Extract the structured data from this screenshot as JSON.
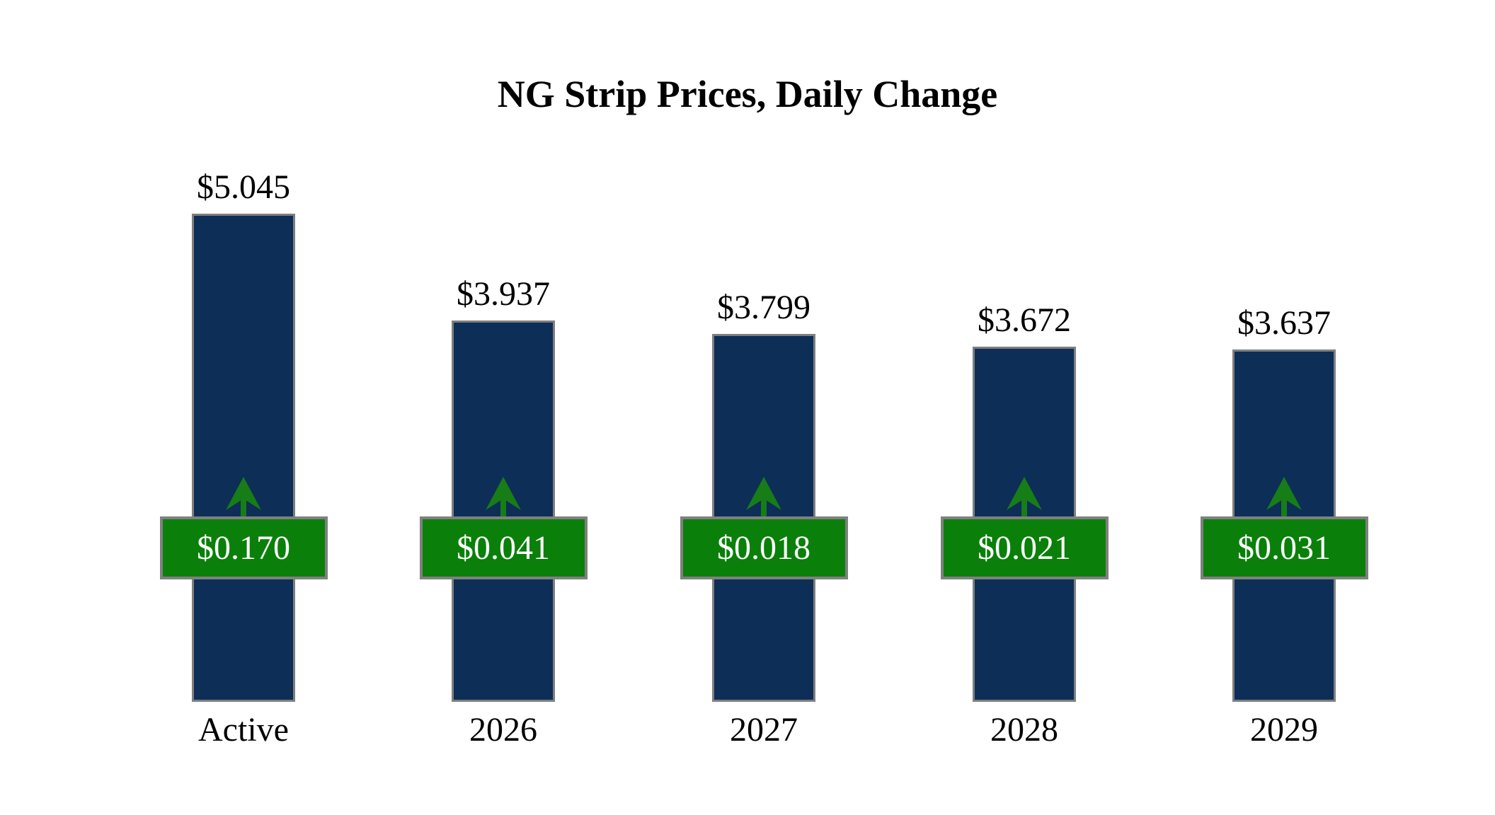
{
  "title": "NG Strip Prices, Daily Change",
  "chart_data": {
    "type": "bar",
    "title": "NG Strip Prices, Daily Change",
    "categories": [
      "Active",
      "2026",
      "2027",
      "2028",
      "2029"
    ],
    "series": [
      {
        "name": "Strip Price",
        "values": [
          5.045,
          3.937,
          3.799,
          3.672,
          3.637
        ],
        "labels": [
          "$5.045",
          "$3.937",
          "$3.799",
          "$3.672",
          "$3.637"
        ]
      },
      {
        "name": "Daily Change",
        "values": [
          0.17,
          0.041,
          0.018,
          0.021,
          0.031
        ],
        "labels": [
          "$0.170",
          "$0.041",
          "$0.018",
          "$0.021",
          "$0.031"
        ],
        "direction": "up"
      }
    ],
    "ylim": [
      0,
      5.045
    ],
    "grid": false,
    "legend": false,
    "annotations": "green badge on each bar shows daily change with upward green arrow above it",
    "colors": {
      "background": "#ffffff",
      "bar_fill": "#0d2e56",
      "bar_border": "#7f7f7f",
      "badge_fill": "#0a800a",
      "badge_border": "#808080",
      "badge_text": "#ffffff",
      "arrow": "#177d17",
      "label_text": "#000000"
    }
  }
}
